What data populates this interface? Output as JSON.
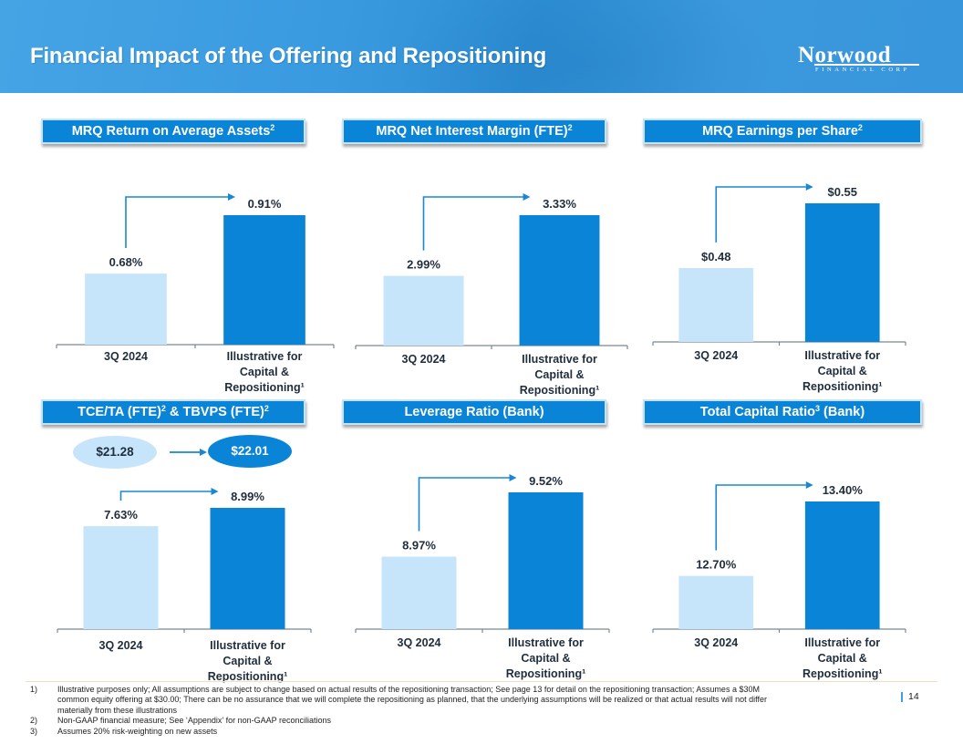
{
  "header": {
    "title": "Financial Impact of the Offering and Repositioning",
    "logo_main": "Norwood",
    "logo_sub": "FINANCIAL CORP"
  },
  "colors": {
    "header_blue": "#3a9ae0",
    "panel_header_blue": "#0a84d6",
    "bar_before": "#c7e5fa",
    "bar_after": "#0a84d6",
    "arrow": "#1a87d2",
    "text_dark": "#1f2d3d"
  },
  "panels": [
    {
      "title": "MRQ Return on Average Assets",
      "sup": "2"
    },
    {
      "title": "MRQ Net Interest Margin (FTE)",
      "sup": "2"
    },
    {
      "title": "MRQ Earnings per Share",
      "sup": "2"
    },
    {
      "title_parts": [
        "TCE/TA (FTE)",
        "2",
        " & TBVPS (FTE)",
        "2"
      ]
    },
    {
      "title": "Leverage Ratio (Bank)"
    },
    {
      "title_parts": [
        "Total Capital Ratio",
        "3",
        " (Bank)"
      ]
    }
  ],
  "tbvps": {
    "before": "$21.28",
    "after": "$22.01"
  },
  "chart_data": [
    {
      "type": "bar",
      "title": "MRQ Return on Average Assets²",
      "categories": [
        "3Q 2024",
        "Illustrative for Capital & Repositioning¹"
      ],
      "values": [
        0.68,
        0.91
      ],
      "value_labels": [
        "0.68%",
        "0.91%"
      ],
      "unit": "%",
      "xlabel": "",
      "ylabel": "",
      "grid": false,
      "legend": "none"
    },
    {
      "type": "bar",
      "title": "MRQ Net Interest Margin (FTE)²",
      "categories": [
        "3Q 2024",
        "Illustrative for Capital & Repositioning¹"
      ],
      "values": [
        2.99,
        3.33
      ],
      "value_labels": [
        "2.99%",
        "3.33%"
      ],
      "unit": "%",
      "xlabel": "",
      "ylabel": "",
      "grid": false,
      "legend": "none"
    },
    {
      "type": "bar",
      "title": "MRQ Earnings per Share²",
      "categories": [
        "3Q 2024",
        "Illustrative for Capital & Repositioning¹"
      ],
      "values": [
        0.48,
        0.55
      ],
      "value_labels": [
        "$0.48",
        "$0.55"
      ],
      "unit": "$",
      "xlabel": "",
      "ylabel": "",
      "grid": false,
      "legend": "none"
    },
    {
      "type": "bar",
      "title": "TCE/TA (FTE)² & TBVPS (FTE)²",
      "categories": [
        "3Q 2024",
        "Illustrative for Capital & Repositioning¹"
      ],
      "values": [
        7.63,
        8.99
      ],
      "value_labels": [
        "7.63%",
        "8.99%"
      ],
      "unit": "%",
      "annotations": [
        "TBVPS: $21.28 → $22.01"
      ],
      "xlabel": "",
      "ylabel": "",
      "grid": false,
      "legend": "none"
    },
    {
      "type": "bar",
      "title": "Leverage Ratio (Bank)",
      "categories": [
        "3Q 2024",
        "Illustrative for Capital & Repositioning¹"
      ],
      "values": [
        8.97,
        9.52
      ],
      "value_labels": [
        "8.97%",
        "9.52%"
      ],
      "unit": "%",
      "xlabel": "",
      "ylabel": "",
      "grid": false,
      "legend": "none"
    },
    {
      "type": "bar",
      "title": "Total Capital Ratio³ (Bank)",
      "categories": [
        "3Q 2024",
        "Illustrative for Capital & Repositioning¹"
      ],
      "values": [
        12.7,
        13.4
      ],
      "value_labels": [
        "12.70%",
        "13.40%"
      ],
      "unit": "%",
      "xlabel": "",
      "ylabel": "",
      "grid": false,
      "legend": "none"
    }
  ],
  "category_lines": {
    "before": [
      "3Q 2024"
    ],
    "after": [
      "Illustrative for",
      "Capital &",
      "Repositioning¹"
    ]
  },
  "footnotes": [
    {
      "num": "1)",
      "text": "Illustrative purposes only; All assumptions are subject to change based on actual results of the repositioning transaction; See page 13 for detail on the repositioning transaction; Assumes a $30M common equity offering at $30.00; There can be no assurance that we will complete the repositioning as planned, that the underlying assumptions will be realized or that actual results will not differ materially from these illustrations"
    },
    {
      "num": "2)",
      "text": "Non-GAAP financial measure; See ‘Appendix’ for non-GAAP reconciliations"
    },
    {
      "num": "3)",
      "text": "Assumes 20% risk-weighting on new assets"
    }
  ],
  "page_number": "14"
}
